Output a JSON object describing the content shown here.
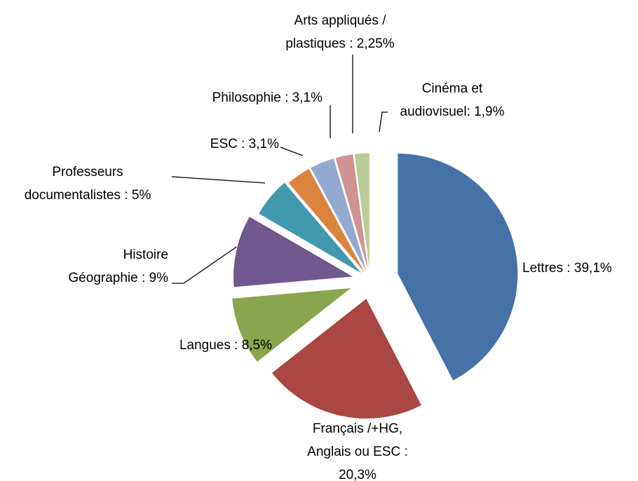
{
  "chart_data": {
    "type": "pie",
    "categories": [
      [
        "Lettres : 39,1%"
      ],
      [
        "Français /+HG,",
        "Anglais ou ESC :",
        "20,3%"
      ],
      [
        "Langues : 8,5%"
      ],
      [
        "Histoire",
        "Géographie : 9%"
      ],
      [
        "Professeurs",
        "documentalistes : 5%"
      ],
      [
        "ESC : 3,1%"
      ],
      [
        "Philosophie : 3,1%"
      ],
      [
        "Arts appliqués /",
        "plastiques : 2,25%"
      ],
      [
        "Cinéma et",
        "audiovisuel: 1,9%"
      ]
    ],
    "values": [
      39.1,
      20.3,
      8.5,
      9,
      5,
      3.1,
      3.1,
      2.25,
      1.9
    ],
    "colors": [
      "#4572a7",
      "#aa4643",
      "#89a54e",
      "#71588f",
      "#4198af",
      "#db843d",
      "#93a9cf",
      "#d19392",
      "#b9cd96"
    ]
  }
}
